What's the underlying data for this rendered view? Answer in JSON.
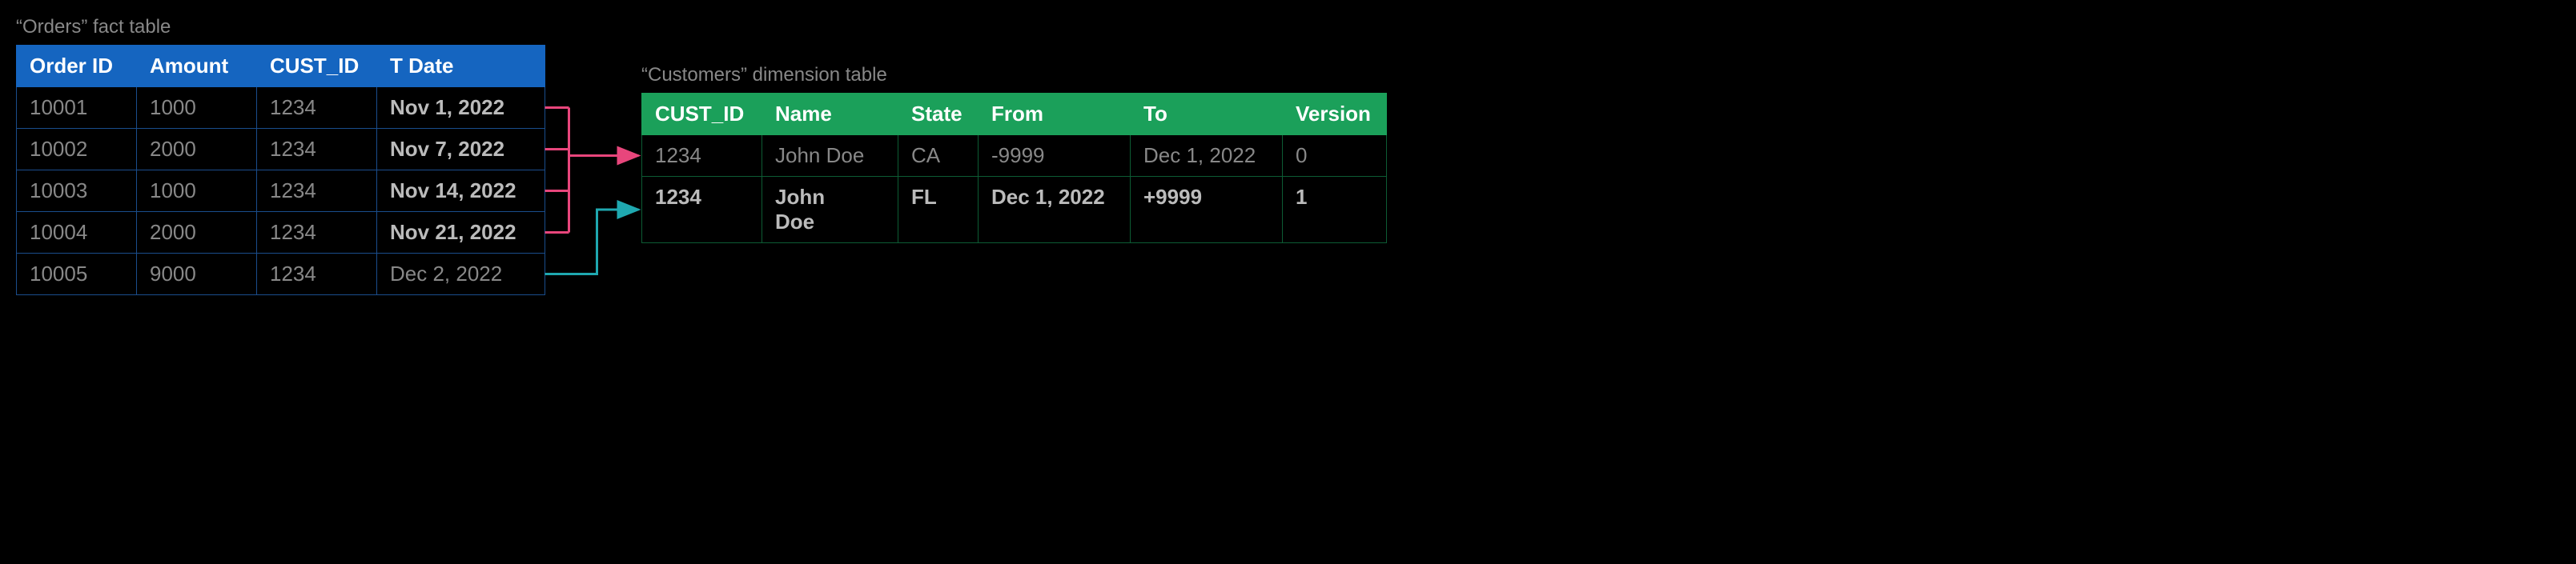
{
  "fact": {
    "caption": "“Orders” fact table",
    "columns": [
      "Order ID",
      "Amount",
      "CUST_ID",
      "T Date"
    ],
    "rows": [
      {
        "order_id": "10001",
        "amount": "1000",
        "cust_id": "1234",
        "t_date": "Nov 1, 2022",
        "date_bold": true
      },
      {
        "order_id": "10002",
        "amount": "2000",
        "cust_id": "1234",
        "t_date": "Nov 7, 2022",
        "date_bold": true
      },
      {
        "order_id": "10003",
        "amount": "1000",
        "cust_id": "1234",
        "t_date": "Nov 14, 2022",
        "date_bold": true
      },
      {
        "order_id": "10004",
        "amount": "2000",
        "cust_id": "1234",
        "t_date": "Nov 21, 2022",
        "date_bold": true
      },
      {
        "order_id": "10005",
        "amount": "9000",
        "cust_id": "1234",
        "t_date": "Dec 2, 2022",
        "date_bold": false
      }
    ],
    "header_bg": "#1565c0",
    "header_fg": "#ffffff",
    "border_color": "#1a4d8c",
    "cell_fg": "#888888"
  },
  "dim": {
    "caption": "“Customers” dimension table",
    "columns": [
      "CUST_ID",
      "Name",
      "State",
      "From",
      "To",
      "Version"
    ],
    "rows": [
      {
        "cust_id": "1234",
        "name": "John Doe",
        "state": "CA",
        "from": "-9999",
        "to": "Dec 1, 2022",
        "version": "0",
        "bold": false,
        "wrap_name": false
      },
      {
        "cust_id": "1234",
        "name": "John Doe",
        "state": "FL",
        "from": "Dec 1, 2022",
        "to": "+9999",
        "version": "1",
        "bold": true,
        "wrap_name": true
      }
    ],
    "header_bg": "#1ba05a",
    "header_fg": "#ffffff",
    "border_color": "#0d5c34",
    "cell_fg": "#888888"
  },
  "connectors": {
    "pink": {
      "color": "#e8467c",
      "stroke_width": 3,
      "from_rows": [
        0,
        1,
        2,
        3
      ],
      "to_row": 0
    },
    "teal": {
      "color": "#1fa8b0",
      "stroke_width": 3,
      "from_rows": [
        4
      ],
      "to_row": 1
    }
  },
  "background_color": "#000000",
  "caption_color": "#888888"
}
